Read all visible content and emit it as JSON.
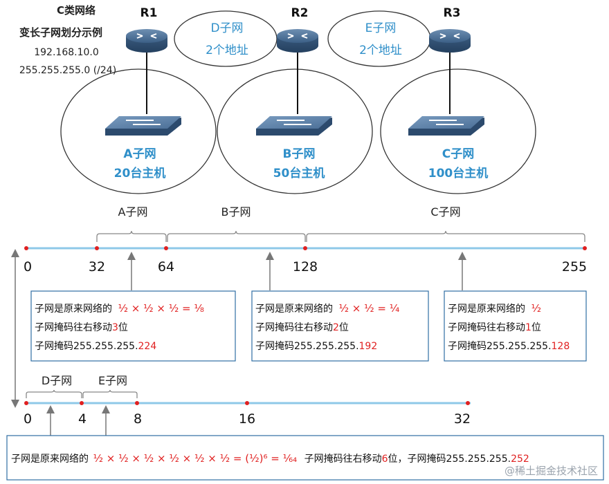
{
  "header": {
    "line1": "C类网络",
    "line2": "变长子网划分示例",
    "line3": "192.168.10.0",
    "line4": "255.255.255.0 (/24)"
  },
  "routers": [
    "R1",
    "R2",
    "R3"
  ],
  "wan_links": [
    {
      "name": "D子网",
      "hosts": "2个地址"
    },
    {
      "name": "E子网",
      "hosts": "2个地址"
    }
  ],
  "lans": [
    {
      "name": "A子网",
      "hosts": "20台主机"
    },
    {
      "name": "B子网",
      "hosts": "50台主机"
    },
    {
      "name": "C子网",
      "hosts": "100台主机"
    }
  ],
  "axis1": {
    "ticks": [
      "0",
      "32",
      "64",
      "128",
      "255"
    ],
    "braces": [
      "A子网",
      "B子网",
      "C子网"
    ]
  },
  "boxes": [
    {
      "line1_prefix": "子网是原来网络的",
      "line2_prefix": "子网掩码往右移动",
      "line2_num": "3",
      "line2_suffix": "位",
      "line3_prefix": "子网掩码255.255.255.",
      "line3_num": "224"
    },
    {
      "line1_prefix": "子网是原来网络的",
      "line2_prefix": "子网掩码往右移动",
      "line2_num": "2",
      "line2_suffix": "位",
      "line3_prefix": "子网掩码255.255.255.",
      "line3_num": "192"
    },
    {
      "line1_prefix": "子网是原来网络的",
      "line2_prefix": "子网掩码往右移动",
      "line2_num": "1",
      "line2_suffix": "位",
      "line3_prefix": "子网掩码255.255.255.",
      "line3_num": "128"
    }
  ],
  "axis2": {
    "ticks": [
      "0",
      "4",
      "8",
      "16",
      "32"
    ],
    "braces": [
      "D子网",
      "E子网"
    ]
  },
  "bottom_box": {
    "prefix": "子网是原来网络的",
    "mid": "子网掩码往右移动",
    "num": "6",
    "suffix": "位，子网掩码255.255.255.",
    "mask": "252"
  },
  "watermark": "@稀土掘金技术社区",
  "colors": {
    "accent": "#2f8fc9",
    "highlight": "#e02020",
    "axis": "#8ec8e8",
    "box_border": "#2e6da4"
  }
}
